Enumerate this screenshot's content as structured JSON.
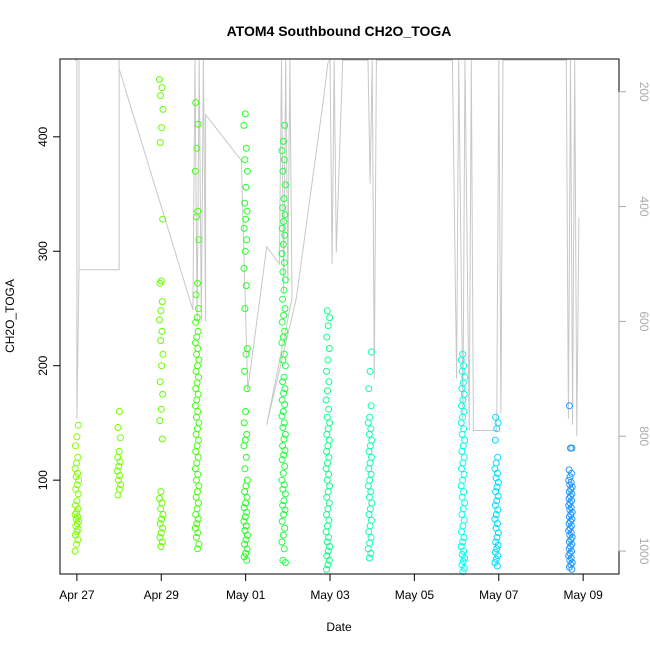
{
  "chart_data": {
    "type": "scatter",
    "title": "ATOM4 Southbound CH2O_TOGA",
    "xlabel": "Date",
    "ylabel": "CH2O_TOGA",
    "x_ticks": [
      "Apr 27",
      "Apr 29",
      "May 01",
      "May 03",
      "May 05",
      "May 07",
      "May 09"
    ],
    "x_tick_values": [
      0,
      2,
      4,
      6,
      8,
      10,
      12
    ],
    "xlim": [
      -0.4,
      12.85
    ],
    "ylim": [
      18,
      468
    ],
    "y_ticks": [
      100,
      200,
      300,
      400
    ],
    "y2_ticks": [
      200,
      400,
      600,
      800,
      1000
    ],
    "y2_axis": "pressure (reversed, gray)",
    "y2lim": [
      1040,
      143
    ],
    "grid": false,
    "legend": "none",
    "marker": "open circle",
    "colors": {
      "axis": "#000000",
      "y2_axis": "#aaaaaa",
      "altitude_trace": "#c8c8c8"
    },
    "series": [
      {
        "day": 0.0,
        "color": "#80ff00",
        "values": [
          38,
          44,
          48,
          52,
          55,
          57,
          60,
          62,
          64,
          66,
          68,
          70,
          72,
          75,
          78,
          82,
          88,
          92,
          96,
          100,
          103,
          106,
          110,
          115,
          120,
          130,
          138,
          148
        ]
      },
      {
        "day": 1.0,
        "color": "#73ff00",
        "values": [
          87,
          92,
          96,
          100,
          104,
          108,
          112,
          116,
          120,
          125,
          137,
          146,
          160
        ]
      },
      {
        "day": 2.0,
        "color": "#66ff00",
        "values": [
          42,
          46,
          50,
          54,
          58,
          62,
          66,
          70,
          75,
          80,
          84,
          90,
          136,
          152,
          162,
          175,
          186,
          200,
          210,
          222,
          230,
          240,
          248,
          256,
          272,
          274,
          328,
          395,
          408,
          424,
          436,
          443,
          450
        ]
      },
      {
        "day": 2.85,
        "color": "#44ff11",
        "values": [
          40,
          44,
          50,
          54,
          58,
          62,
          66,
          70,
          75,
          80,
          85,
          90,
          95,
          100,
          105,
          110,
          115,
          120,
          125,
          130,
          135,
          140,
          145,
          150,
          155,
          160,
          165,
          170,
          175,
          180,
          185,
          190,
          195,
          200,
          205,
          210,
          215,
          220,
          225,
          230,
          238,
          242,
          250,
          262,
          272,
          310,
          330,
          335,
          370,
          390,
          411,
          430
        ]
      },
      {
        "day": 4.0,
        "color": "#22ff22",
        "values": [
          30,
          33,
          36,
          40,
          44,
          48,
          52,
          56,
          60,
          64,
          68,
          72,
          76,
          80,
          85,
          90,
          95,
          100,
          110,
          120,
          130,
          135,
          140,
          150,
          160,
          180,
          195,
          210,
          215,
          250,
          270,
          285,
          300,
          310,
          320,
          328,
          335,
          342,
          356,
          370,
          380,
          390,
          410,
          420
        ]
      },
      {
        "day": 4.9,
        "color": "#22ff44",
        "values": [
          28,
          30,
          40,
          46,
          52,
          58,
          64,
          70,
          74,
          78,
          82,
          88,
          92,
          96,
          100,
          106,
          112,
          118,
          122,
          126,
          130,
          136,
          140,
          146,
          150,
          156,
          160,
          166,
          170,
          176,
          180,
          186,
          190,
          200,
          205,
          210,
          220,
          225,
          230,
          238,
          244,
          250,
          258,
          266,
          275,
          282,
          290,
          298,
          306,
          314,
          320,
          326,
          332,
          338,
          346,
          358,
          370,
          380,
          388,
          396,
          410
        ]
      },
      {
        "day": 5.95,
        "color": "#11ff88",
        "values": [
          22,
          26,
          30,
          34,
          38,
          42,
          46,
          50,
          55,
          60,
          65,
          70,
          75,
          80,
          85,
          90,
          95,
          100,
          105,
          110,
          115,
          120,
          125,
          130,
          135,
          140,
          145,
          150,
          155,
          162,
          170,
          178,
          186,
          195,
          205,
          215,
          225,
          235,
          242,
          248
        ]
      },
      {
        "day": 6.95,
        "color": "#11ffaa",
        "values": [
          32,
          36,
          40,
          45,
          50,
          55,
          60,
          65,
          70,
          75,
          80,
          85,
          90,
          95,
          100,
          105,
          110,
          115,
          120,
          125,
          130,
          135,
          140,
          145,
          150,
          155,
          165,
          180,
          195,
          212
        ]
      },
      {
        "day": 9.15,
        "color": "#00ffee",
        "values": [
          20,
          23,
          26,
          29,
          32,
          35,
          38,
          42,
          46,
          50,
          55,
          60,
          65,
          70,
          75,
          80,
          85,
          90,
          95,
          100,
          105,
          110,
          115,
          120,
          125,
          130,
          135,
          140,
          145,
          150,
          155,
          160,
          165,
          170,
          175,
          180,
          185,
          190,
          195,
          200,
          205,
          210
        ]
      },
      {
        "day": 9.95,
        "color": "#00ddff",
        "values": [
          25,
          28,
          31,
          34,
          37,
          40,
          43,
          46,
          50,
          54,
          58,
          62,
          66,
          70,
          74,
          78,
          82,
          86,
          90,
          94,
          98,
          102,
          106,
          110,
          115,
          120,
          135,
          145,
          150,
          155
        ]
      },
      {
        "day": 11.7,
        "color": "#2299ff",
        "values": [
          22,
          24,
          26,
          28,
          30,
          32,
          34,
          36,
          38,
          40,
          42,
          44,
          46,
          48,
          50,
          52,
          54,
          56,
          58,
          60,
          62,
          64,
          66,
          68,
          70,
          72,
          74,
          76,
          78,
          80,
          82,
          84,
          86,
          88,
          90,
          92,
          94,
          96,
          98,
          100,
          103,
          106,
          109,
          128,
          128,
          165
        ]
      }
    ],
    "altitude_trace": [
      {
        "day": -0.05,
        "p": 145
      },
      {
        "day": 0.0,
        "p": 145
      },
      {
        "day": 0.0,
        "p": 770
      },
      {
        "day": 0.05,
        "p": 510
      },
      {
        "day": 0.05,
        "p": 145
      },
      {
        "day": 0.05,
        "p": 510
      },
      {
        "day": 1.0,
        "p": 510
      },
      {
        "day": 1.0,
        "p": 145
      },
      {
        "day": 1.0,
        "p": 160
      },
      {
        "day": 2.75,
        "p": 580
      },
      {
        "day": 2.8,
        "p": 145
      },
      {
        "day": 2.85,
        "p": 600
      },
      {
        "day": 2.9,
        "p": 145
      },
      {
        "day": 2.95,
        "p": 600
      },
      {
        "day": 3.0,
        "p": 145
      },
      {
        "day": 3.05,
        "p": 600
      },
      {
        "day": 3.05,
        "p": 240
      },
      {
        "day": 3.9,
        "p": 320
      },
      {
        "day": 4.05,
        "p": 720
      },
      {
        "day": 4.5,
        "p": 470
      },
      {
        "day": 4.8,
        "p": 500
      },
      {
        "day": 4.85,
        "p": 145
      },
      {
        "day": 4.9,
        "p": 550
      },
      {
        "day": 4.95,
        "p": 145
      },
      {
        "day": 5.0,
        "p": 530
      },
      {
        "day": 5.05,
        "p": 145
      },
      {
        "day": 5.1,
        "p": 560
      },
      {
        "day": 4.5,
        "p": 780
      },
      {
        "day": 5.2,
        "p": 560
      },
      {
        "day": 5.85,
        "p": 210
      },
      {
        "day": 5.95,
        "p": 150
      },
      {
        "day": 6.0,
        "p": 145
      },
      {
        "day": 6.05,
        "p": 500
      },
      {
        "day": 6.1,
        "p": 145
      },
      {
        "day": 6.15,
        "p": 480
      },
      {
        "day": 6.3,
        "p": 145
      },
      {
        "day": 6.9,
        "p": 145
      },
      {
        "day": 6.95,
        "p": 360
      },
      {
        "day": 7.0,
        "p": 145
      },
      {
        "day": 7.05,
        "p": 700
      },
      {
        "day": 7.1,
        "p": 145
      },
      {
        "day": 8.9,
        "p": 145
      },
      {
        "day": 9.0,
        "p": 700
      },
      {
        "day": 9.05,
        "p": 145
      },
      {
        "day": 9.15,
        "p": 770
      },
      {
        "day": 9.2,
        "p": 145
      },
      {
        "day": 9.3,
        "p": 790
      },
      {
        "day": 9.35,
        "p": 145
      },
      {
        "day": 9.4,
        "p": 790
      },
      {
        "day": 9.95,
        "p": 790
      },
      {
        "day": 10.0,
        "p": 145
      },
      {
        "day": 10.05,
        "p": 760
      },
      {
        "day": 10.1,
        "p": 145
      },
      {
        "day": 11.6,
        "p": 145
      },
      {
        "day": 11.65,
        "p": 770
      },
      {
        "day": 11.7,
        "p": 145
      },
      {
        "day": 11.75,
        "p": 780
      },
      {
        "day": 11.8,
        "p": 145
      },
      {
        "day": 11.85,
        "p": 800
      },
      {
        "day": 11.9,
        "p": 420
      }
    ]
  }
}
